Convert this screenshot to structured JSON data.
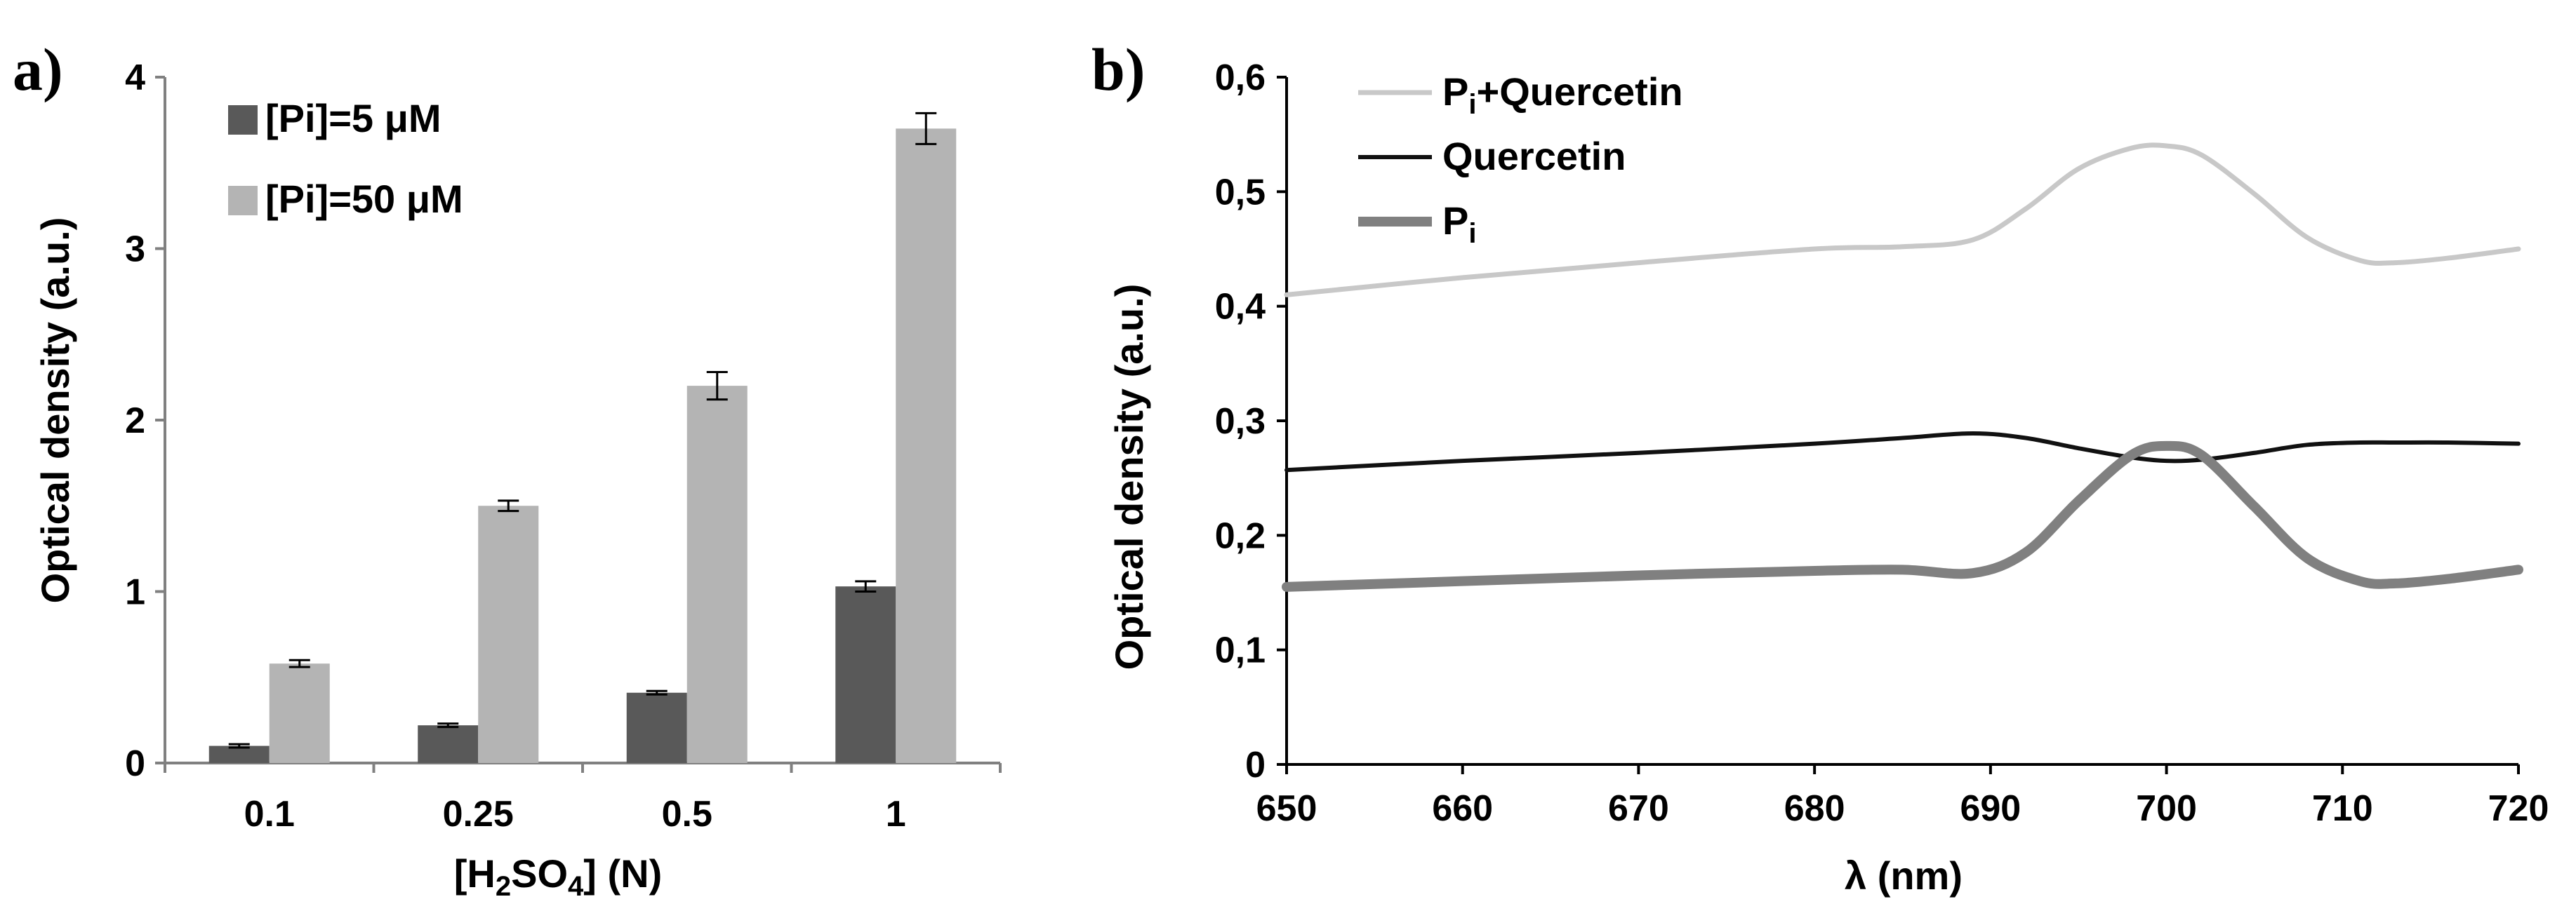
{
  "chart_data": [
    {
      "panel": "a)",
      "type": "bar",
      "xlabel_parts": [
        "[H",
        "2",
        "SO",
        "4",
        "] (N)"
      ],
      "ylabel": "Optical density  (a.u.)",
      "ylim": [
        0,
        4
      ],
      "yticks": [
        "0",
        "1",
        "2",
        "3",
        "4"
      ],
      "categories": [
        "0.1",
        "0.25",
        "0.5",
        "1"
      ],
      "series": [
        {
          "name": "[Pi]=5 μM",
          "color": "#595959",
          "values": [
            0.1,
            0.22,
            0.41,
            1.03
          ],
          "errors": [
            0.01,
            0.01,
            0.01,
            0.03
          ]
        },
        {
          "name": "[Pi]=50 μM",
          "color": "#b4b4b4",
          "values": [
            0.58,
            1.5,
            2.2,
            3.7
          ],
          "errors": [
            0.02,
            0.03,
            0.08,
            0.09
          ]
        }
      ],
      "legend_position": "top-left",
      "grid": false
    },
    {
      "panel": "b)",
      "type": "line",
      "xlabel": "λ (nm)",
      "ylabel": "Optical density (a.u.)",
      "xlim": [
        650,
        720
      ],
      "ylim": [
        0,
        0.6
      ],
      "xticks": [
        "650",
        "660",
        "670",
        "680",
        "690",
        "700",
        "710",
        "720"
      ],
      "yticks": [
        "0",
        "0,1",
        "0,2",
        "0,3",
        "0,4",
        "0,5",
        "0,6"
      ],
      "x": [
        650,
        660,
        670,
        680,
        685,
        689,
        692,
        695,
        698,
        700,
        702,
        705,
        708,
        711,
        713,
        716,
        720
      ],
      "series": [
        {
          "name": "Pi+Quercetin",
          "label_main": "P",
          "label_sub": "i",
          "label_rest": "+Quercetin",
          "color": "#c8c8c8",
          "width": 7,
          "values": [
            0.41,
            0.425,
            0.438,
            0.45,
            0.452,
            0.458,
            0.485,
            0.52,
            0.538,
            0.54,
            0.532,
            0.498,
            0.46,
            0.44,
            0.438,
            0.442,
            0.45
          ]
        },
        {
          "name": "Quercetin",
          "label_main": "Quercetin",
          "label_sub": "",
          "label_rest": "",
          "color": "#111111",
          "width": 6,
          "values": [
            0.257,
            0.265,
            0.272,
            0.28,
            0.285,
            0.289,
            0.285,
            0.276,
            0.268,
            0.265,
            0.266,
            0.272,
            0.279,
            0.281,
            0.281,
            0.281,
            0.28
          ]
        },
        {
          "name": "Pi",
          "label_main": "P",
          "label_sub": "i",
          "label_rest": "",
          "color": "#808080",
          "width": 14,
          "values": [
            0.155,
            0.16,
            0.165,
            0.169,
            0.17,
            0.167,
            0.185,
            0.23,
            0.27,
            0.278,
            0.27,
            0.225,
            0.18,
            0.16,
            0.158,
            0.162,
            0.17
          ]
        }
      ],
      "legend_position": "top-left",
      "grid": false
    }
  ]
}
